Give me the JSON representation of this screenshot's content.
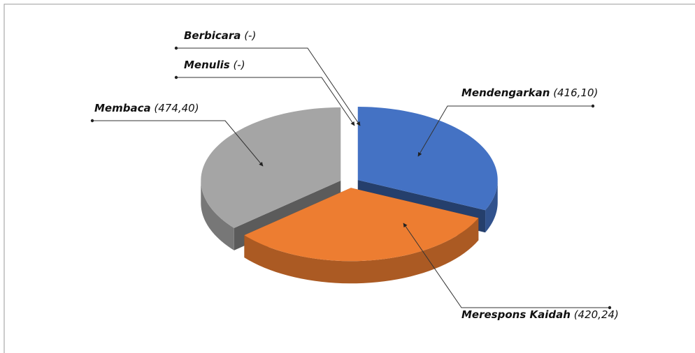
{
  "chart_data": {
    "type": "pie3d",
    "categories": [
      "Mendengarkan",
      "Merespons Kaidah",
      "Membaca",
      "Menulis",
      "Berbicara"
    ],
    "values": [
      416.1,
      420.24,
      474.4,
      null,
      null
    ],
    "value_labels": [
      "(416,10)",
      "(420,24)",
      "(474,40)",
      "(-)",
      "(-)"
    ],
    "colors": [
      "#4472c4",
      "#ed7d31",
      "#a5a5a5",
      "#ffc000",
      "#5b9bd5"
    ]
  }
}
